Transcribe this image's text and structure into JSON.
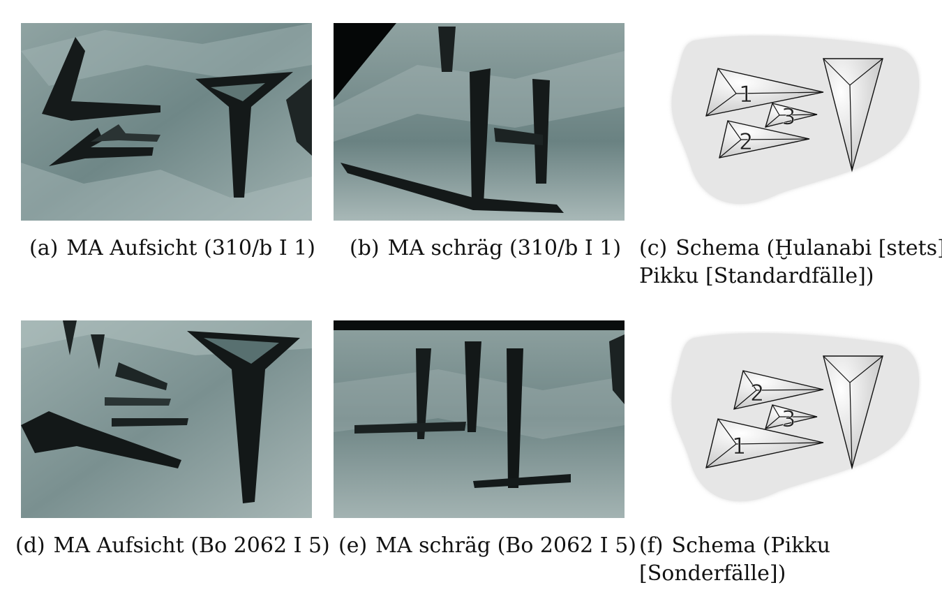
{
  "figures": [
    {
      "tag": "(a)",
      "caption": "MA Aufsicht (310/b I 1)",
      "kind": "photo"
    },
    {
      "tag": "(b)",
      "caption": "MA schräg (310/b I 1)",
      "kind": "photo"
    },
    {
      "tag": "(c)",
      "caption_line1": "Schema (Ḫulanabi [stets],",
      "caption_line2": "Pikku [Standardfälle])",
      "kind": "schema"
    },
    {
      "tag": "(d)",
      "caption": "MA Aufsicht (Bo 2062 I 5)",
      "kind": "photo"
    },
    {
      "tag": "(e)",
      "caption": "MA schräg (Bo 2062 I 5)",
      "kind": "photo"
    },
    {
      "tag": "(f)",
      "caption_line1": "Schema (Pikku",
      "caption_line2": "[Sonderfälle])",
      "kind": "schema"
    }
  ],
  "schema_c": {
    "labels": [
      "1",
      "2",
      "3"
    ]
  },
  "schema_f": {
    "labels": [
      "1",
      "2",
      "3"
    ]
  },
  "colors": {
    "stone": "#6e8585",
    "stone_light": "#b9c7c6",
    "wedge_dark": "#161b1b",
    "schema_bg": "#e6e6e6"
  }
}
